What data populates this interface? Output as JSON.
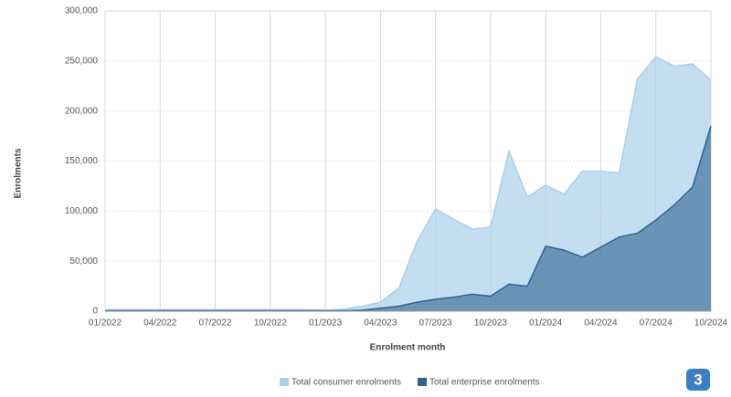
{
  "chart_data": {
    "type": "area",
    "x_label": "Enrolment month",
    "y_label": "Enrolments",
    "categories": [
      "01/2022",
      null,
      null,
      "04/2022",
      null,
      null,
      "07/2022",
      null,
      null,
      "10/2022",
      null,
      null,
      "01/2023",
      null,
      null,
      "04/2023",
      null,
      null,
      "07/2023",
      null,
      null,
      "10/2023",
      null,
      null,
      "01/2024",
      null,
      null,
      "04/2024",
      null,
      null,
      "07/2024",
      null,
      null,
      "10/2024"
    ],
    "series": [
      {
        "name": "Total consumer enrolments",
        "color": "#a9d0e9",
        "values": [
          1500,
          1500,
          1500,
          1500,
          1500,
          1500,
          1500,
          1500,
          1500,
          1500,
          1500,
          1500,
          1000,
          2000,
          5000,
          9000,
          23000,
          70000,
          102000,
          92000,
          82000,
          84000,
          160000,
          114000,
          126000,
          117000,
          140000,
          140000,
          138000,
          232000,
          254000,
          245000,
          247000,
          231000
        ]
      },
      {
        "name": "Total enterprise enrolments",
        "color": "#2f6391",
        "values": [
          500,
          500,
          500,
          500,
          500,
          500,
          500,
          500,
          500,
          500,
          500,
          500,
          500,
          500,
          1000,
          3000,
          5000,
          9000,
          12000,
          14000,
          17000,
          15000,
          27000,
          25000,
          65000,
          61000,
          54000,
          64000,
          74000,
          78000,
          91000,
          106000,
          124000,
          185000
        ]
      }
    ],
    "ylim": [
      0,
      300000
    ],
    "yticks": [
      0,
      {
        "value": 50000,
        "label": "50,000"
      },
      {
        "value": 100000,
        "label": "100,000"
      },
      {
        "value": 150000,
        "label": "150,000"
      },
      {
        "value": 200000,
        "label": "200,000"
      },
      {
        "value": 250000,
        "label": "250,000"
      },
      {
        "value": 300000,
        "label": "300,000"
      }
    ],
    "grid": true,
    "legend": "bottom"
  },
  "page_badge": "3"
}
